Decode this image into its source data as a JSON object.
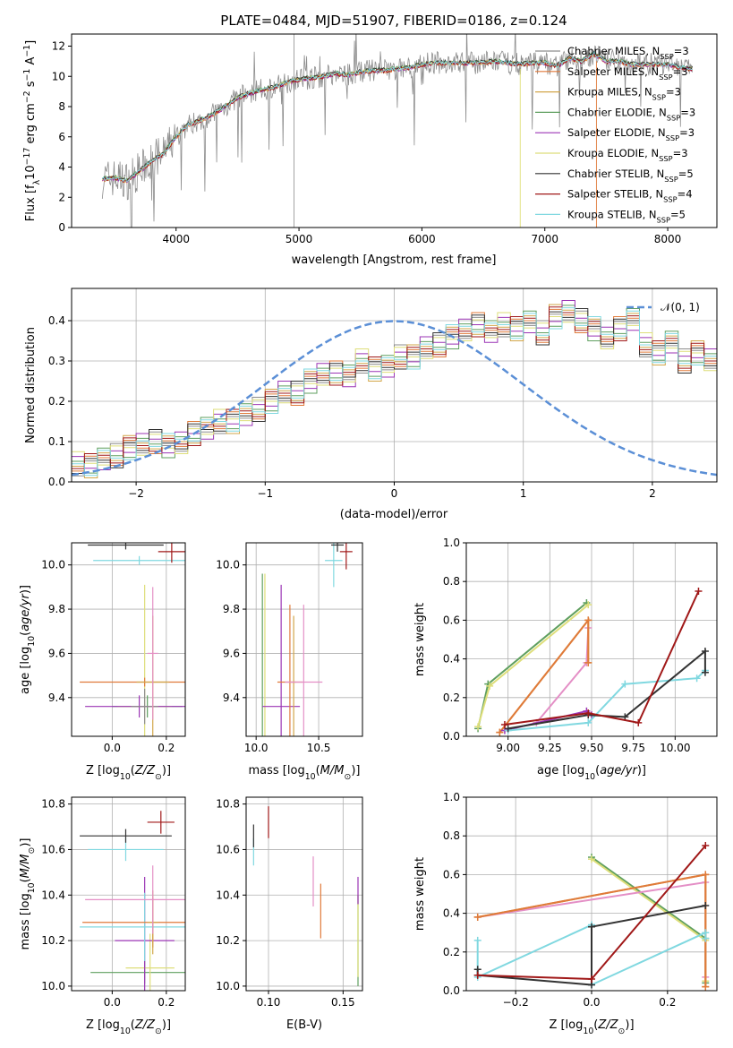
{
  "figure_title": "PLATE=0484, MJD=51907, FIBERID=0186, z=0.124",
  "series_colors": [
    "#8d8d8d",
    "#e07a3a",
    "#d2a64a",
    "#5f9f5f",
    "#9b35b5",
    "#dede7a",
    "#333333",
    "#a01818",
    "#80d8e0"
  ],
  "chart_data": [
    {
      "id": "spectrum",
      "type": "line",
      "title": "PLATE=0484, MJD=51907, FIBERID=0186, z=0.124",
      "xlabel": "wavelength [Angstrom, rest frame]",
      "ylabel": "Flux [f_λ 10^-17 erg cm^-2 s^-1 A^-1]",
      "xlim": [
        3150,
        8400
      ],
      "ylim": [
        0,
        12.8
      ],
      "xticks": [
        "4000",
        "5000",
        "6000",
        "7000",
        "8000"
      ],
      "yticks": [
        "0",
        "2",
        "4",
        "6",
        "8",
        "10",
        "12"
      ],
      "legend_position": "right",
      "legend": [
        {
          "label": "Chabrier MILES, N_SSP=3",
          "color": "#8d8d8d"
        },
        {
          "label": "Salpeter MILES, N_SSP=3",
          "color": "#e07a3a"
        },
        {
          "label": "Kroupa MILES, N_SSP=3",
          "color": "#d2a64a"
        },
        {
          "label": "Chabrier ELODIE, N_SSP=3",
          "color": "#5f9f5f"
        },
        {
          "label": "Salpeter ELODIE, N_SSP=3",
          "color": "#9b35b5"
        },
        {
          "label": "Kroupa ELODIE, N_SSP=3",
          "color": "#dede7a"
        },
        {
          "label": "Chabrier STELIB, N_SSP=5",
          "color": "#333333"
        },
        {
          "label": "Salpeter STELIB, N_SSP=4",
          "color": "#a01818"
        },
        {
          "label": "Kroupa STELIB, N_SSP=5",
          "color": "#80d8e0"
        }
      ],
      "model_curve": {
        "x": [
          3400,
          3500,
          3600,
          3700,
          3800,
          3900,
          4000,
          4100,
          4200,
          4300,
          4400,
          4500,
          4600,
          4700,
          4800,
          4900,
          5000,
          5100,
          5200,
          5300,
          5400,
          5500,
          5600,
          5700,
          5800,
          5900,
          6000,
          6100,
          6200,
          6300,
          6400,
          6500,
          6600,
          6700,
          6800,
          6900,
          7000,
          7100,
          7200,
          7300,
          7400,
          7500,
          7600,
          7700,
          7800,
          7900,
          8000,
          8100,
          8200
        ],
        "y": [
          3.2,
          3.3,
          3.1,
          3.7,
          4.4,
          4.9,
          6.0,
          6.8,
          7.1,
          7.5,
          8.0,
          8.6,
          8.9,
          9.1,
          9.3,
          9.6,
          9.8,
          9.9,
          10.0,
          10.2,
          10.1,
          10.3,
          10.4,
          10.4,
          10.5,
          10.6,
          10.8,
          10.9,
          10.9,
          10.9,
          10.9,
          10.9,
          11.0,
          10.9,
          10.8,
          10.9,
          10.9,
          10.7,
          11.2,
          11.0,
          11.5,
          11.0,
          11.0,
          10.8,
          10.8,
          10.8,
          10.8,
          10.6,
          10.5
        ]
      }
    },
    {
      "id": "residual_histogram",
      "type": "line",
      "xlabel": "(data-model)/error",
      "ylabel": "Normed distribution",
      "xlim": [
        -2.5,
        2.5
      ],
      "ylim": [
        0,
        0.48
      ],
      "xticks": [
        "−2",
        "−1",
        "0",
        "1",
        "2"
      ],
      "yticks": [
        "0.0",
        "0.1",
        "0.2",
        "0.3",
        "0.4"
      ],
      "grid": true,
      "legend": [
        {
          "label": "N(0,1)",
          "color": "#5b8fd6"
        }
      ],
      "bin_edges_start": -2.5,
      "bin_width": 0.1,
      "histogram": [
        0.045,
        0.04,
        0.06,
        0.065,
        0.085,
        0.09,
        0.1,
        0.09,
        0.1,
        0.12,
        0.13,
        0.15,
        0.15,
        0.17,
        0.18,
        0.2,
        0.22,
        0.22,
        0.25,
        0.27,
        0.27,
        0.26,
        0.3,
        0.28,
        0.29,
        0.31,
        0.31,
        0.33,
        0.34,
        0.36,
        0.38,
        0.39,
        0.37,
        0.39,
        0.38,
        0.4,
        0.37,
        0.41,
        0.42,
        0.4,
        0.38,
        0.36,
        0.38,
        0.4,
        0.34,
        0.32,
        0.35,
        0.3,
        0.32,
        0.3,
        0.27,
        0.25,
        0.25,
        0.23,
        0.21,
        0.2,
        0.19,
        0.17,
        0.15,
        0.14,
        0.12,
        0.11,
        0.1,
        0.09,
        0.08,
        0.07,
        0.065,
        0.055,
        0.05,
        0.045,
        0.04,
        0.035,
        0.03,
        0.025,
        0.02,
        0.02,
        0.015,
        0.015,
        0.012,
        0.01
      ],
      "gaussian": {
        "mean": 0,
        "sigma": 1
      }
    },
    {
      "id": "age_vs_Z",
      "type": "scatter",
      "xlabel": "Z [log10(Z/Z_sun)]",
      "ylabel": "age [log10(age/yr)]",
      "xlim": [
        -0.15,
        0.27
      ],
      "ylim": [
        9.225,
        10.1
      ],
      "xticks": [
        "0.0",
        "0.2"
      ],
      "yticks": [
        "9.4",
        "9.6",
        "9.8",
        "10.0"
      ],
      "points": [
        {
          "x": 0.13,
          "y": 9.36,
          "xerr": 0.13,
          "yerr": 0.05,
          "c": "#5f9f5f"
        },
        {
          "x": 0.12,
          "y": 9.36,
          "xerr": 0.1,
          "yerr": 0.55,
          "c": "#dede7a"
        },
        {
          "x": 0.1,
          "y": 9.36,
          "xerr": 0.2,
          "yerr": 0.05,
          "c": "#9b35b5"
        },
        {
          "x": 0.12,
          "y": 9.36,
          "xerr": 0.05,
          "yerr": 0.08,
          "c": "#8d8d8d"
        },
        {
          "x": 0.12,
          "y": 9.47,
          "xerr": 0.24,
          "yerr": 0.02,
          "c": "#e07a3a"
        },
        {
          "x": 0.15,
          "y": 9.47,
          "xerr": 0.06,
          "yerr": 0.3,
          "c": "#d2a64a"
        },
        {
          "x": 0.15,
          "y": 9.6,
          "xerr": 0.02,
          "yerr": 0.3,
          "c": "#e48fc6"
        },
        {
          "x": 0.1,
          "y": 10.02,
          "xerr": 0.17,
          "yerr": 0.02,
          "c": "#80d8e0"
        },
        {
          "x": 0.22,
          "y": 10.06,
          "xerr": 0.05,
          "yerr": 0.05,
          "c": "#a01818"
        },
        {
          "x": 0.05,
          "y": 10.09,
          "xerr": 0.14,
          "yerr": 0.02,
          "c": "#333333"
        }
      ]
    },
    {
      "id": "age_vs_mass",
      "type": "scatter",
      "xlabel": "mass [log10(M/M_sun)]",
      "ylabel": "",
      "xlim": [
        9.92,
        10.85
      ],
      "ylim": [
        9.225,
        10.1
      ],
      "xticks": [
        "10.0",
        "10.5"
      ],
      "yticks": [
        "9.4",
        "9.6",
        "9.8",
        "10.0"
      ],
      "points": [
        {
          "x": 10.05,
          "y": 9.36,
          "xerr": 0.0,
          "yerr": 0.6,
          "c": "#5f9f5f"
        },
        {
          "x": 10.07,
          "y": 9.36,
          "xerr": 0.0,
          "yerr": 0.6,
          "c": "#dede7a"
        },
        {
          "x": 10.2,
          "y": 9.36,
          "xerr": 0.15,
          "yerr": 0.55,
          "c": "#9b35b5"
        },
        {
          "x": 10.27,
          "y": 9.47,
          "xerr": 0.1,
          "yerr": 0.35,
          "c": "#e07a3a"
        },
        {
          "x": 10.3,
          "y": 9.47,
          "xerr": 0.02,
          "yerr": 0.3,
          "c": "#d2a64a"
        },
        {
          "x": 10.38,
          "y": 9.47,
          "xerr": 0.15,
          "yerr": 0.35,
          "c": "#e48fc6"
        },
        {
          "x": 10.62,
          "y": 10.02,
          "xerr": 0.07,
          "yerr": 0.12,
          "c": "#80d8e0"
        },
        {
          "x": 10.72,
          "y": 10.06,
          "xerr": 0.05,
          "yerr": 0.08,
          "c": "#a01818"
        },
        {
          "x": 10.65,
          "y": 10.09,
          "xerr": 0.05,
          "yerr": 0.03,
          "c": "#333333"
        }
      ]
    },
    {
      "id": "massweight_vs_age",
      "type": "line",
      "xlabel": "age [log10(age/yr)]",
      "ylabel": "mass weight",
      "xlim": [
        8.75,
        10.25
      ],
      "ylim": [
        0,
        1.0
      ],
      "xticks": [
        "9.00",
        "9.25",
        "9.50",
        "9.75",
        "10.00"
      ],
      "yticks": [
        "0.0",
        "0.2",
        "0.4",
        "0.6",
        "0.8",
        "1.0"
      ],
      "grid": true,
      "series": [
        {
          "c": "#5f9f5f",
          "x": [
            8.82,
            8.88,
            9.47
          ],
          "y": [
            0.04,
            0.27,
            0.69
          ]
        },
        {
          "c": "#dede7a",
          "x": [
            8.82,
            8.89,
            9.48
          ],
          "y": [
            0.05,
            0.26,
            0.68
          ]
        },
        {
          "c": "#e48fc6",
          "x": [
            9.17,
            9.47,
            9.48
          ],
          "y": [
            0.07,
            0.38,
            0.56
          ]
        },
        {
          "c": "#d2a64a",
          "x": [
            8.95,
            9.48,
            9.48
          ],
          "y": [
            0.02,
            0.6,
            0.38
          ]
        },
        {
          "c": "#e07a3a",
          "x": [
            8.95,
            9.48,
            9.48
          ],
          "y": [
            0.02,
            0.6,
            0.38
          ]
        },
        {
          "c": "#9b35b5",
          "x": [
            8.98,
            9.47,
            9.5
          ],
          "y": [
            0.03,
            0.13,
            0.11
          ]
        },
        {
          "c": "#80d8e0",
          "x": [
            9.0,
            9.48,
            9.7,
            10.13,
            10.18
          ],
          "y": [
            0.03,
            0.07,
            0.27,
            0.3,
            0.34
          ]
        },
        {
          "c": "#333333",
          "x": [
            9.0,
            9.48,
            9.7,
            10.18,
            10.18
          ],
          "y": [
            0.04,
            0.11,
            0.1,
            0.44,
            0.33
          ]
        },
        {
          "c": "#a01818",
          "x": [
            8.98,
            9.48,
            9.78,
            10.14
          ],
          "y": [
            0.06,
            0.12,
            0.07,
            0.75
          ]
        }
      ]
    },
    {
      "id": "mass_vs_Z",
      "type": "scatter",
      "xlabel": "Z [log10(Z/Z_sun)]",
      "ylabel": "mass [log10(M/M_sun)]",
      "xlim": [
        -0.15,
        0.27
      ],
      "ylim": [
        9.98,
        10.83
      ],
      "xticks": [
        "0.0",
        "0.2"
      ],
      "yticks": [
        "10.0",
        "10.2",
        "10.4",
        "10.6",
        "10.8"
      ],
      "points": [
        {
          "x": 0.12,
          "y": 10.06,
          "xerr": 0.2,
          "yerr": 0.05,
          "c": "#5f9f5f"
        },
        {
          "x": 0.14,
          "y": 10.08,
          "xerr": 0.09,
          "yerr": 0.15,
          "c": "#dede7a"
        },
        {
          "x": 0.12,
          "y": 10.2,
          "xerr": 0.11,
          "yerr": 0.28,
          "c": "#9b35b5"
        },
        {
          "x": 0.12,
          "y": 10.26,
          "xerr": 0.24,
          "yerr": 0.15,
          "c": "#80d8e0"
        },
        {
          "x": 0.15,
          "y": 10.28,
          "xerr": 0.26,
          "yerr": 0.11,
          "c": "#e07a3a"
        },
        {
          "x": 0.15,
          "y": 10.28,
          "xerr": 0.02,
          "yerr": 0.14,
          "c": "#d2a64a"
        },
        {
          "x": 0.15,
          "y": 10.38,
          "xerr": 0.25,
          "yerr": 0.15,
          "c": "#e48fc6"
        },
        {
          "x": 0.05,
          "y": 10.6,
          "xerr": 0.14,
          "yerr": 0.05,
          "c": "#80d8e0"
        },
        {
          "x": 0.05,
          "y": 10.66,
          "xerr": 0.17,
          "yerr": 0.03,
          "c": "#333333"
        },
        {
          "x": 0.18,
          "y": 10.72,
          "xerr": 0.05,
          "yerr": 0.05,
          "c": "#a01818"
        }
      ]
    },
    {
      "id": "mass_vs_EBV",
      "type": "scatter",
      "xlabel": "E(B-V)",
      "ylabel": "",
      "xlim": [
        0.085,
        0.163
      ],
      "ylim": [
        9.98,
        10.83
      ],
      "xticks": [
        "0.10",
        "0.15"
      ],
      "yticks": [
        "10.0",
        "10.2",
        "10.4",
        "10.6",
        "10.8"
      ],
      "points": [
        {
          "x": 0.16,
          "y": 10.2,
          "yerr": 0.2,
          "c": "#5f9f5f"
        },
        {
          "x": 0.16,
          "y": 10.22,
          "yerr": 0.18,
          "c": "#dede7a"
        },
        {
          "x": 0.16,
          "y": 10.42,
          "yerr": 0.06,
          "c": "#9b35b5"
        },
        {
          "x": 0.135,
          "y": 10.33,
          "yerr": 0.12,
          "c": "#e07a3a"
        },
        {
          "x": 0.13,
          "y": 10.46,
          "yerr": 0.11,
          "c": "#e48fc6"
        },
        {
          "x": 0.09,
          "y": 10.59,
          "yerr": 0.06,
          "c": "#80d8e0"
        },
        {
          "x": 0.09,
          "y": 10.66,
          "yerr": 0.05,
          "c": "#333333"
        },
        {
          "x": 0.1,
          "y": 10.72,
          "yerr": 0.07,
          "c": "#a01818"
        }
      ]
    },
    {
      "id": "massweight_vs_Z",
      "type": "line",
      "xlabel": "Z [log10(Z/Z_sun)]",
      "ylabel": "mass weight",
      "xlim": [
        -0.33,
        0.33
      ],
      "ylim": [
        0,
        1.0
      ],
      "xticks": [
        "−0.2",
        "0.0",
        "0.2"
      ],
      "yticks": [
        "0.0",
        "0.2",
        "0.4",
        "0.6",
        "0.8",
        "1.0"
      ],
      "grid": true,
      "series": [
        {
          "c": "#5f9f5f",
          "x": [
            0.0,
            0.3,
            0.3
          ],
          "y": [
            0.69,
            0.27,
            0.04
          ]
        },
        {
          "c": "#dede7a",
          "x": [
            0.0,
            0.3,
            0.3
          ],
          "y": [
            0.68,
            0.26,
            0.05
          ]
        },
        {
          "c": "#e48fc6",
          "x": [
            -0.3,
            0.3,
            0.3
          ],
          "y": [
            0.38,
            0.56,
            0.07
          ]
        },
        {
          "c": "#d2a64a",
          "x": [
            -0.3,
            0.3,
            0.3
          ],
          "y": [
            0.38,
            0.6,
            0.02
          ]
        },
        {
          "c": "#e07a3a",
          "x": [
            -0.3,
            0.3,
            0.3
          ],
          "y": [
            0.38,
            0.6,
            0.02
          ]
        },
        {
          "c": "#80d8e0",
          "x": [
            -0.3,
            -0.3,
            0.0,
            0.0,
            0.3,
            0.3
          ],
          "y": [
            0.26,
            0.07,
            0.34,
            0.03,
            0.3,
            0.27
          ]
        },
        {
          "c": "#333333",
          "x": [
            -0.3,
            -0.3,
            0.0,
            0.0,
            0.3
          ],
          "y": [
            0.11,
            0.08,
            0.03,
            0.33,
            0.44
          ]
        },
        {
          "c": "#a01818",
          "x": [
            -0.3,
            0.0,
            0.3
          ],
          "y": [
            0.08,
            0.06,
            0.75
          ]
        }
      ]
    }
  ],
  "n01_label": "N(0,1)"
}
